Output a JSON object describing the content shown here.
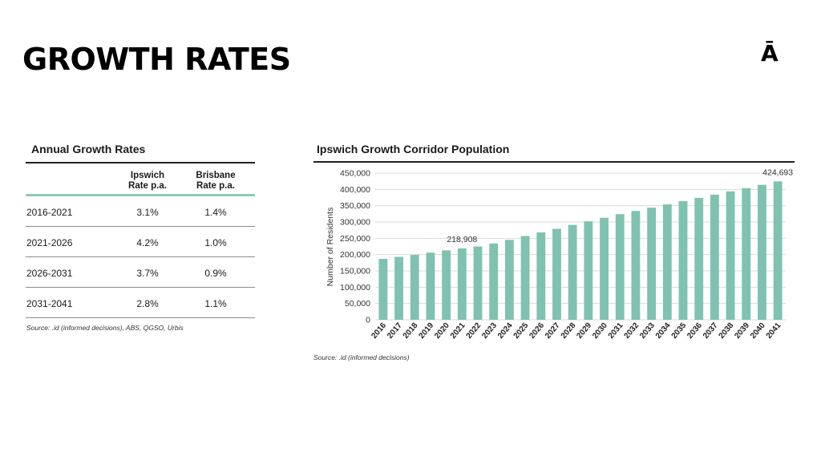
{
  "page": {
    "title": "GROWTH RATES",
    "logo": "Ā"
  },
  "table": {
    "title": "Annual Growth Rates",
    "headers": {
      "ipswich": [
        "Ipswich",
        "Rate p.a."
      ],
      "brisbane": [
        "Brisbane",
        "Rate p.a."
      ]
    },
    "rows": [
      {
        "period": "2016-2021",
        "ipswich": "3.1%",
        "brisbane": "1.4%"
      },
      {
        "period": "2021-2026",
        "ipswich": "4.2%",
        "brisbane": "1.0%"
      },
      {
        "period": "2026-2031",
        "ipswich": "3.7%",
        "brisbane": "0.9%"
      },
      {
        "period": "2031-2041",
        "ipswich": "2.8%",
        "brisbane": "1.1%"
      }
    ],
    "source": "Source: .id (informed decisions), ABS, QGSO, Urbis"
  },
  "chart_data": {
    "type": "bar",
    "title": "Ipswich Growth Corridor Population",
    "ylabel": "Number of Residents",
    "xlabel": "",
    "ylim": [
      0,
      450000
    ],
    "yticks": [
      0,
      50000,
      100000,
      150000,
      200000,
      250000,
      300000,
      350000,
      400000,
      450000
    ],
    "ytick_labels": [
      "0",
      "50,000",
      "100,000",
      "150,000",
      "200,000",
      "250,000",
      "300,000",
      "350,000",
      "400,000",
      "450,000"
    ],
    "categories": [
      "2016",
      "2017",
      "2018",
      "2019",
      "2020",
      "2021",
      "2022",
      "2023",
      "2024",
      "2025",
      "2026",
      "2027",
      "2028",
      "2029",
      "2030",
      "2031",
      "2032",
      "2033",
      "2034",
      "2035",
      "2036",
      "2037",
      "2038",
      "2039",
      "2040",
      "2041"
    ],
    "values": [
      187000,
      193000,
      199000,
      206000,
      213000,
      218908,
      225000,
      234000,
      245000,
      257000,
      268000,
      279000,
      291000,
      302000,
      313000,
      324000,
      334000,
      344000,
      354000,
      364000,
      374000,
      384000,
      394000,
      404000,
      414000,
      424693
    ],
    "data_labels": [
      {
        "category": "2021",
        "label": "218,908"
      },
      {
        "category": "2041",
        "label": "424,693"
      }
    ],
    "grid": true,
    "bar_color": "#7fc2b0",
    "source": "Source: .id (informed decisions)"
  }
}
